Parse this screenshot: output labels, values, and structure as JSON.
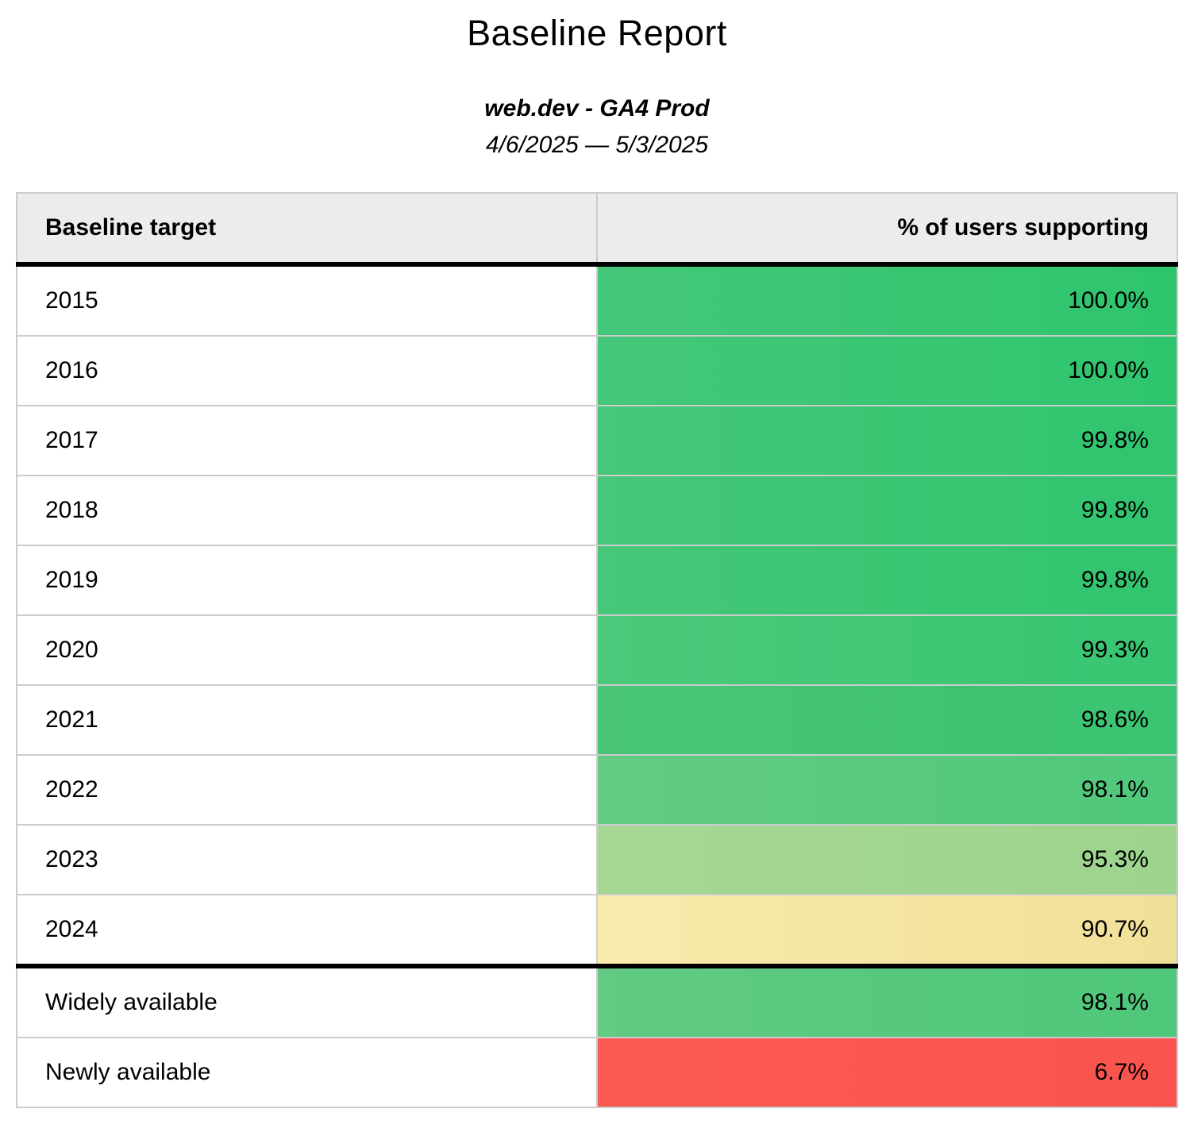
{
  "page": {
    "title": "Baseline Report",
    "subtitle": "web.dev - GA4 Prod",
    "date_range": "4/6/2025 — 5/3/2025"
  },
  "table": {
    "columns": [
      {
        "label": "Baseline target"
      },
      {
        "label": "% of users supporting"
      }
    ],
    "header_bg": "#ECECEC",
    "border_color": "#CCCCCC",
    "divider_color": "#000000",
    "rows": [
      {
        "target": "2015",
        "value": "100.0%",
        "color_left": "#45C77A",
        "color_right": "#2EC56D",
        "divider_before": false
      },
      {
        "target": "2016",
        "value": "100.0%",
        "color_left": "#45C77A",
        "color_right": "#2EC56D",
        "divider_before": false
      },
      {
        "target": "2017",
        "value": "99.8%",
        "color_left": "#46C77A",
        "color_right": "#30C56E",
        "divider_before": false
      },
      {
        "target": "2018",
        "value": "99.8%",
        "color_left": "#46C77A",
        "color_right": "#30C56E",
        "divider_before": false
      },
      {
        "target": "2019",
        "value": "99.8%",
        "color_left": "#46C77A",
        "color_right": "#30C56E",
        "divider_before": false
      },
      {
        "target": "2020",
        "value": "99.3%",
        "color_left": "#4CC87B",
        "color_right": "#37C672",
        "divider_before": false
      },
      {
        "target": "2021",
        "value": "98.6%",
        "color_left": "#4AC577",
        "color_right": "#3AC471",
        "divider_before": false
      },
      {
        "target": "2022",
        "value": "98.1%",
        "color_left": "#63CB84",
        "color_right": "#4FC87B",
        "divider_before": false
      },
      {
        "target": "2023",
        "value": "95.3%",
        "color_left": "#A6D795",
        "color_right": "#9CD48D",
        "divider_before": false
      },
      {
        "target": "2024",
        "value": "90.7%",
        "color_left": "#FAEAAC",
        "color_right": "#F0E098",
        "divider_before": false
      },
      {
        "target": "Widely available",
        "value": "98.1%",
        "color_left": "#62CA83",
        "color_right": "#4EC77A",
        "divider_before": true
      },
      {
        "target": "Newly available",
        "value": "6.7%",
        "color_left": "#FC5B55",
        "color_right": "#FA534E",
        "divider_before": false
      }
    ]
  }
}
